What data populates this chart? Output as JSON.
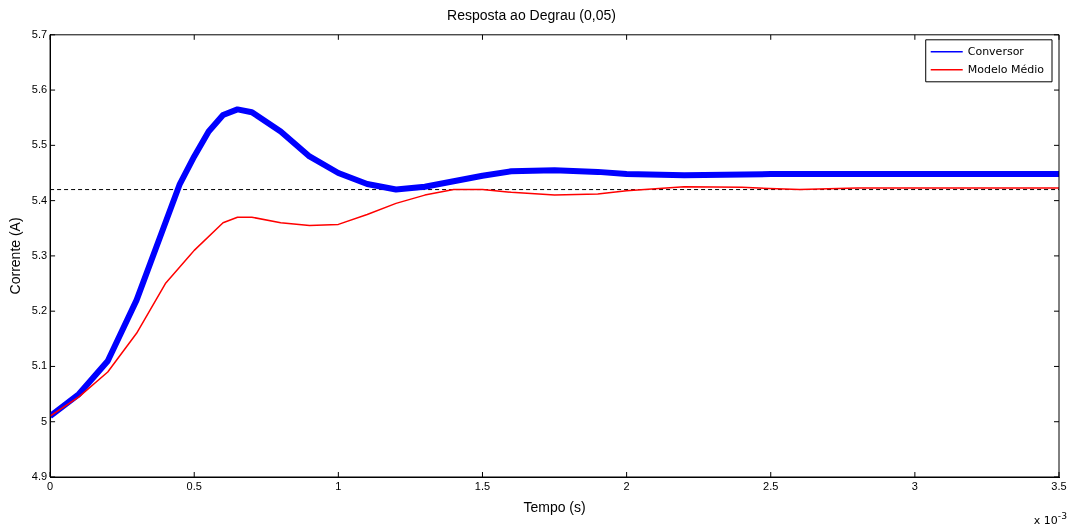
{
  "chart_data": {
    "type": "line",
    "title": "Resposta ao Degrau (0,05)",
    "xlabel": "Tempo (s)",
    "ylabel": "Corrente (A)",
    "xlim": [
      0,
      3.5
    ],
    "xticks": [
      0,
      0.5,
      1,
      1.5,
      2,
      2.5,
      3,
      3.5
    ],
    "ylim": [
      4.9,
      5.7
    ],
    "yticks": [
      4.9,
      5,
      5.1,
      5.2,
      5.3,
      5.4,
      5.5,
      5.6,
      5.7
    ],
    "grid": false,
    "legend": "top right",
    "marker": "none",
    "annotations": [
      "x 10$^{-3}$"
    ],
    "ref_lines": [
      {
        "axis": "y",
        "value": 5.42,
        "color": "#000000",
        "line_style": "dashed"
      }
    ],
    "series": [
      {
        "name": "Conversor",
        "color": "#0000ff",
        "x": [
          0,
          0.1,
          0.2,
          0.3,
          0.4,
          0.45,
          0.5,
          0.55,
          0.6,
          0.65,
          0.7,
          0.8,
          0.9,
          1.0,
          1.1,
          1.2,
          1.3,
          1.4,
          1.5,
          1.6,
          1.75,
          1.9,
          2.0,
          2.2,
          2.5,
          3.0,
          3.5
        ],
        "values": [
          5.01,
          5.05,
          5.11,
          5.22,
          5.36,
          5.43,
          5.48,
          5.525,
          5.555,
          5.565,
          5.56,
          5.525,
          5.48,
          5.45,
          5.43,
          5.42,
          5.425,
          5.435,
          5.445,
          5.453,
          5.455,
          5.452,
          5.448,
          5.446,
          5.448,
          5.448,
          5.448
        ]
      },
      {
        "name": "Modelo Médio",
        "color": "#ff0000",
        "x": [
          0,
          0.1,
          0.2,
          0.3,
          0.4,
          0.5,
          0.6,
          0.65,
          0.7,
          0.8,
          0.9,
          1.0,
          1.1,
          1.2,
          1.3,
          1.4,
          1.5,
          1.6,
          1.75,
          1.9,
          2.0,
          2.2,
          2.4,
          2.6,
          2.8,
          3.0,
          3.5
        ],
        "values": [
          5.01,
          5.045,
          5.09,
          5.16,
          5.25,
          5.31,
          5.36,
          5.37,
          5.37,
          5.36,
          5.355,
          5.357,
          5.375,
          5.395,
          5.41,
          5.42,
          5.42,
          5.415,
          5.41,
          5.412,
          5.418,
          5.425,
          5.424,
          5.42,
          5.423,
          5.423,
          5.423
        ]
      }
    ]
  }
}
